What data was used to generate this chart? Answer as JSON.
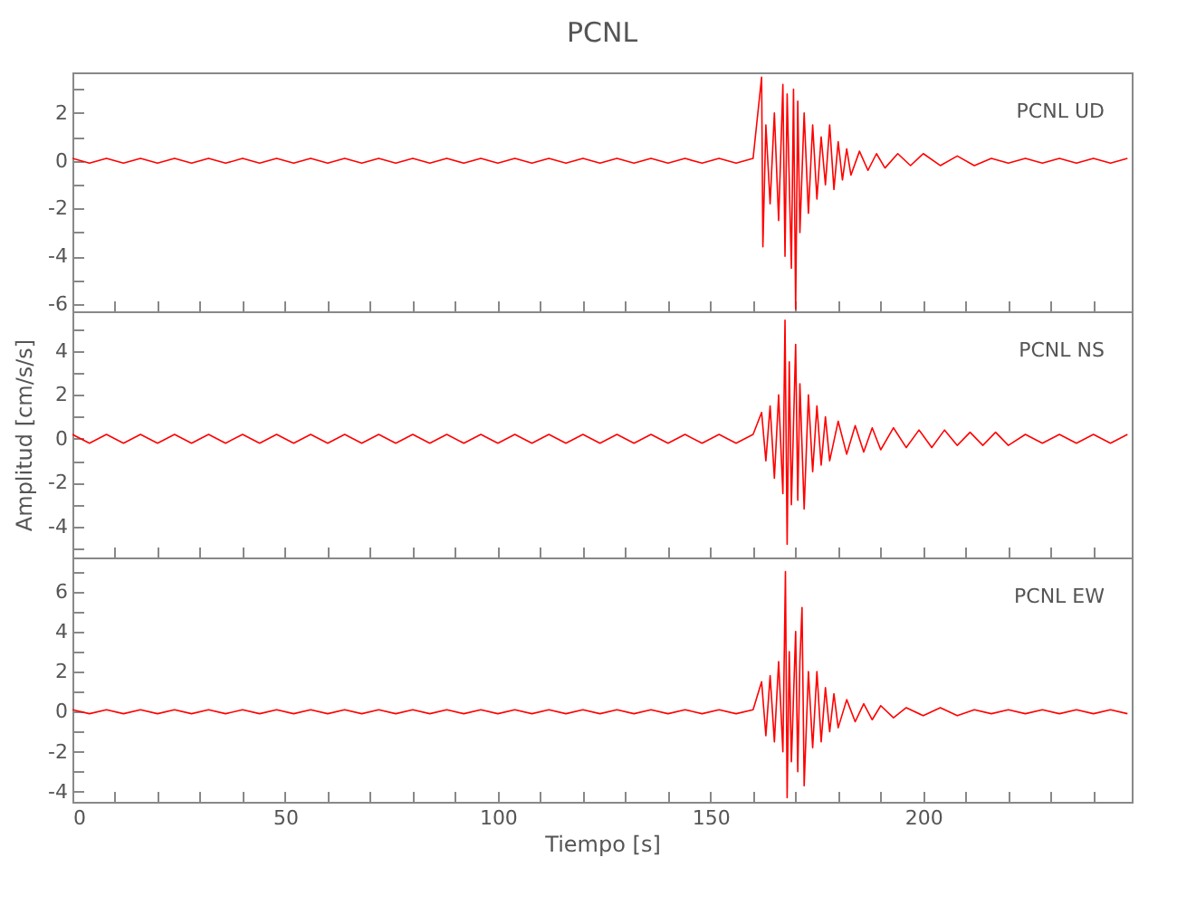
{
  "chart_data": [
    {
      "type": "line",
      "title": "PCNL",
      "annotations": [
        "PCNL   UD"
      ],
      "tick_labels": "y",
      "xlim": [
        0,
        249
      ],
      "ylim": [
        -6.3,
        3.7
      ],
      "xticks": [
        0,
        {
          "value": 10,
          "label": null
        },
        {
          "value": 20,
          "label": null
        },
        {
          "value": 30,
          "label": null
        },
        {
          "value": 40,
          "label": null
        },
        50,
        {
          "value": 60,
          "label": null
        },
        {
          "value": 70,
          "label": null
        },
        {
          "value": 80,
          "label": null
        },
        {
          "value": 90,
          "label": null
        },
        100,
        {
          "value": 110,
          "label": null
        },
        {
          "value": 120,
          "label": null
        },
        {
          "value": 130,
          "label": null
        },
        {
          "value": 140,
          "label": null
        },
        150,
        {
          "value": 160,
          "label": null
        },
        {
          "value": 170,
          "label": null
        },
        {
          "value": 180,
          "label": null
        },
        {
          "value": 190,
          "label": null
        },
        200,
        {
          "value": 210,
          "label": null
        },
        {
          "value": 220,
          "label": null
        },
        {
          "value": 230,
          "label": null
        },
        {
          "value": 240,
          "label": null
        }
      ],
      "yticks": [
        -6,
        {
          "value": -5,
          "label": null
        },
        -4,
        {
          "value": -3,
          "label": null
        },
        -2,
        {
          "value": -1,
          "label": null
        },
        0,
        {
          "value": 1,
          "label": null
        },
        2,
        {
          "value": 3,
          "label": null
        }
      ],
      "x": [
        0,
        4,
        8,
        12,
        16,
        20,
        24,
        28,
        32,
        36,
        40,
        44,
        48,
        52,
        56,
        60,
        64,
        68,
        72,
        76,
        80,
        84,
        88,
        92,
        96,
        100,
        104,
        108,
        112,
        116,
        120,
        124,
        128,
        132,
        136,
        140,
        144,
        148,
        152,
        156,
        160,
        162,
        162.3,
        163,
        164,
        165,
        166,
        167,
        167.5,
        168,
        169,
        169.5,
        170,
        170.5,
        171,
        172,
        173,
        174,
        175,
        176,
        177,
        178,
        179,
        180,
        181,
        182,
        183,
        185,
        187,
        189,
        191,
        194,
        197,
        200,
        204,
        208,
        212,
        216,
        220,
        224,
        228,
        232,
        236,
        240,
        244,
        248
      ],
      "series": [
        {
          "color": "#ff0000",
          "values": [
            0.1,
            -0.1,
            0.1,
            -0.1,
            0.1,
            -0.1,
            0.1,
            -0.1,
            0.1,
            -0.1,
            0.1,
            -0.1,
            0.1,
            -0.1,
            0.1,
            -0.1,
            0.1,
            -0.1,
            0.1,
            -0.1,
            0.1,
            -0.1,
            0.1,
            -0.1,
            0.1,
            -0.1,
            0.1,
            -0.1,
            0.1,
            -0.1,
            0.1,
            -0.1,
            0.1,
            -0.1,
            0.1,
            -0.1,
            0.1,
            -0.1,
            0.1,
            -0.1,
            0.1,
            3.5,
            -3.6,
            1.5,
            -1.8,
            2.0,
            -2.5,
            3.2,
            -4.0,
            2.8,
            -4.5,
            3.0,
            -6.2,
            2.5,
            -3.0,
            2.0,
            -2.2,
            1.5,
            -1.6,
            1.0,
            -1.0,
            1.5,
            -1.2,
            0.8,
            -0.8,
            0.5,
            -0.6,
            0.4,
            -0.4,
            0.3,
            -0.3,
            0.3,
            -0.2,
            0.3,
            -0.2,
            0.2,
            -0.2,
            0.1,
            -0.1,
            0.1,
            -0.1,
            0.1,
            -0.1,
            0.1,
            -0.1,
            0.1
          ]
        }
      ]
    },
    {
      "type": "line",
      "ylabel": "Amplitud [cm/s/s]",
      "annotations": [
        "PCNL   NS"
      ],
      "tick_labels": "y",
      "xlim": [
        0,
        249
      ],
      "ylim": [
        -5.4,
        5.8
      ],
      "xticks": [
        0,
        {
          "value": 10,
          "label": null
        },
        {
          "value": 20,
          "label": null
        },
        {
          "value": 30,
          "label": null
        },
        {
          "value": 40,
          "label": null
        },
        50,
        {
          "value": 60,
          "label": null
        },
        {
          "value": 70,
          "label": null
        },
        {
          "value": 80,
          "label": null
        },
        {
          "value": 90,
          "label": null
        },
        100,
        {
          "value": 110,
          "label": null
        },
        {
          "value": 120,
          "label": null
        },
        {
          "value": 130,
          "label": null
        },
        {
          "value": 140,
          "label": null
        },
        150,
        {
          "value": 160,
          "label": null
        },
        {
          "value": 170,
          "label": null
        },
        {
          "value": 180,
          "label": null
        },
        {
          "value": 190,
          "label": null
        },
        200,
        {
          "value": 210,
          "label": null
        },
        {
          "value": 220,
          "label": null
        },
        {
          "value": 230,
          "label": null
        },
        {
          "value": 240,
          "label": null
        }
      ],
      "yticks": [
        {
          "value": -5,
          "label": null
        },
        -4,
        {
          "value": -3,
          "label": null
        },
        -2,
        {
          "value": -1,
          "label": null
        },
        0,
        {
          "value": 1,
          "label": null
        },
        2,
        {
          "value": 3,
          "label": null
        },
        4,
        {
          "value": 5,
          "label": null
        }
      ],
      "x": [
        0,
        4,
        8,
        12,
        16,
        20,
        24,
        28,
        32,
        36,
        40,
        44,
        48,
        52,
        56,
        60,
        64,
        68,
        72,
        76,
        80,
        84,
        88,
        92,
        96,
        100,
        104,
        108,
        112,
        116,
        120,
        124,
        128,
        132,
        136,
        140,
        144,
        148,
        152,
        156,
        160,
        162,
        163,
        164,
        165,
        166,
        167,
        167.5,
        168,
        168.5,
        169,
        170,
        170.5,
        171,
        172,
        173,
        174,
        175,
        176,
        177,
        178,
        180,
        182,
        184,
        186,
        188,
        190,
        193,
        196,
        199,
        202,
        205,
        208,
        211,
        214,
        217,
        220,
        224,
        228,
        232,
        236,
        240,
        244,
        248
      ],
      "series": [
        {
          "color": "#ff0000",
          "values": [
            0.2,
            -0.2,
            0.2,
            -0.2,
            0.2,
            -0.2,
            0.2,
            -0.2,
            0.2,
            -0.2,
            0.2,
            -0.2,
            0.2,
            -0.2,
            0.2,
            -0.2,
            0.2,
            -0.2,
            0.2,
            -0.2,
            0.2,
            -0.2,
            0.2,
            -0.2,
            0.2,
            -0.2,
            0.2,
            -0.2,
            0.2,
            -0.2,
            0.2,
            -0.2,
            0.2,
            -0.2,
            0.2,
            -0.2,
            0.2,
            -0.2,
            0.2,
            -0.2,
            0.2,
            1.2,
            -1.0,
            1.5,
            -1.8,
            2.0,
            -2.5,
            5.4,
            -4.8,
            3.5,
            -3.0,
            4.3,
            -2.8,
            2.5,
            -3.2,
            2.0,
            -1.5,
            1.5,
            -1.2,
            1.0,
            -1.0,
            0.8,
            -0.7,
            0.6,
            -0.6,
            0.5,
            -0.5,
            0.5,
            -0.4,
            0.4,
            -0.4,
            0.4,
            -0.3,
            0.3,
            -0.3,
            0.3,
            -0.3,
            0.2,
            -0.2,
            0.2,
            -0.2,
            0.2,
            -0.2,
            0.2
          ]
        }
      ]
    },
    {
      "type": "line",
      "xlabel": "Tiempo [s]",
      "annotations": [
        "PCNL   EW"
      ],
      "xlim": [
        0,
        249
      ],
      "ylim": [
        -4.5,
        7.7
      ],
      "xticks": [
        0,
        {
          "value": 10,
          "label": null
        },
        {
          "value": 20,
          "label": null
        },
        {
          "value": 30,
          "label": null
        },
        {
          "value": 40,
          "label": null
        },
        50,
        {
          "value": 60,
          "label": null
        },
        {
          "value": 70,
          "label": null
        },
        {
          "value": 80,
          "label": null
        },
        {
          "value": 90,
          "label": null
        },
        100,
        {
          "value": 110,
          "label": null
        },
        {
          "value": 120,
          "label": null
        },
        {
          "value": 130,
          "label": null
        },
        {
          "value": 140,
          "label": null
        },
        150,
        {
          "value": 160,
          "label": null
        },
        {
          "value": 170,
          "label": null
        },
        {
          "value": 180,
          "label": null
        },
        {
          "value": 190,
          "label": null
        },
        200,
        {
          "value": 210,
          "label": null
        },
        {
          "value": 220,
          "label": null
        },
        {
          "value": 230,
          "label": null
        },
        {
          "value": 240,
          "label": null
        }
      ],
      "yticks": [
        -4,
        {
          "value": -3,
          "label": null
        },
        -2,
        {
          "value": -1,
          "label": null
        },
        0,
        {
          "value": 1,
          "label": null
        },
        2,
        {
          "value": 3,
          "label": null
        },
        4,
        {
          "value": 5,
          "label": null
        },
        6,
        {
          "value": 7,
          "label": null
        }
      ],
      "x": [
        0,
        4,
        8,
        12,
        16,
        20,
        24,
        28,
        32,
        36,
        40,
        44,
        48,
        52,
        56,
        60,
        64,
        68,
        72,
        76,
        80,
        84,
        88,
        92,
        96,
        100,
        104,
        108,
        112,
        116,
        120,
        124,
        128,
        132,
        136,
        140,
        144,
        148,
        152,
        156,
        160,
        162,
        163,
        164,
        165,
        166,
        167,
        167.6,
        168,
        168.5,
        169,
        170,
        170.5,
        171,
        171.5,
        172,
        173,
        174,
        175,
        176,
        177,
        178,
        179,
        180,
        182,
        184,
        186,
        188,
        190,
        193,
        196,
        200,
        204,
        208,
        212,
        216,
        220,
        224,
        228,
        232,
        236,
        240,
        244,
        248
      ],
      "series": [
        {
          "color": "#ff0000",
          "values": [
            0.1,
            -0.1,
            0.1,
            -0.1,
            0.1,
            -0.1,
            0.1,
            -0.1,
            0.1,
            -0.1,
            0.1,
            -0.1,
            0.1,
            -0.1,
            0.1,
            -0.1,
            0.1,
            -0.1,
            0.1,
            -0.1,
            0.1,
            -0.1,
            0.1,
            -0.1,
            0.1,
            -0.1,
            0.1,
            -0.1,
            0.1,
            -0.1,
            0.1,
            -0.1,
            0.1,
            -0.1,
            0.1,
            -0.1,
            0.1,
            -0.1,
            0.1,
            -0.1,
            0.1,
            1.5,
            -1.2,
            1.8,
            -1.5,
            2.5,
            -2.0,
            7.0,
            -4.3,
            3.0,
            -2.5,
            4.0,
            -3.0,
            2.5,
            5.2,
            -3.7,
            2.0,
            -1.8,
            2.0,
            -1.5,
            1.2,
            -1.0,
            0.9,
            -0.8,
            0.6,
            -0.5,
            0.4,
            -0.4,
            0.3,
            -0.3,
            0.2,
            -0.2,
            0.2,
            -0.2,
            0.1,
            -0.1,
            0.1,
            -0.1,
            0.1,
            -0.1,
            0.1,
            -0.1,
            0.1,
            -0.1
          ]
        }
      ]
    }
  ]
}
